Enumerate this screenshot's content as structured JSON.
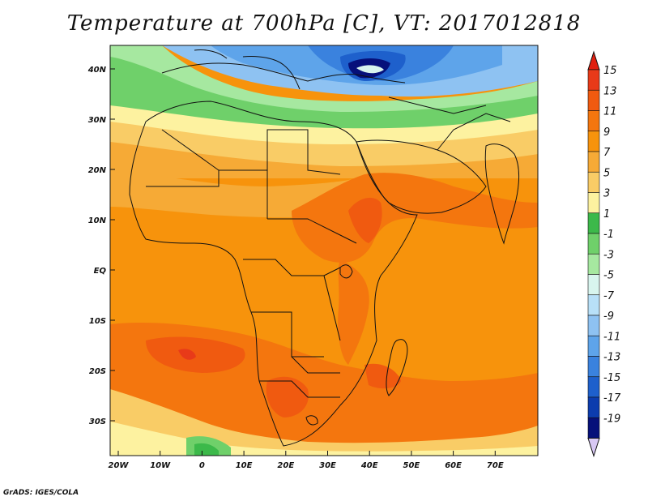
{
  "title": "Temperature at 700hPa [C], VT: 2017012818",
  "credit": "GrADS: IGES/COLA",
  "map": {
    "lat_labels": [
      "40N",
      "30N",
      "20N",
      "10N",
      "EQ",
      "10S",
      "20S",
      "30S"
    ],
    "lon_labels": [
      "20W",
      "10W",
      "0",
      "10E",
      "20E",
      "30E",
      "40E",
      "50E",
      "60E",
      "70E"
    ]
  },
  "colorbar": {
    "labels": [
      "15",
      "13",
      "11",
      "9",
      "7",
      "5",
      "3",
      "1",
      "-1",
      "-3",
      "-5",
      "-7",
      "-9",
      "-11",
      "-13",
      "-15",
      "-17",
      "-19"
    ],
    "colors": [
      "#e83a19",
      "#f05a10",
      "#f4760e",
      "#f7930c",
      "#f6aa36",
      "#f9cc66",
      "#fdf2a0",
      "#3cb94a",
      "#6fd06a",
      "#a6e8a0",
      "#d8f5ee",
      "#b8e0f8",
      "#8ec2f2",
      "#5ea4ea",
      "#3a82de",
      "#1e60cc",
      "#0c3cae",
      "#06107a"
    ],
    "over_color": "#e02010",
    "under_color": "#d8c8f4"
  }
}
